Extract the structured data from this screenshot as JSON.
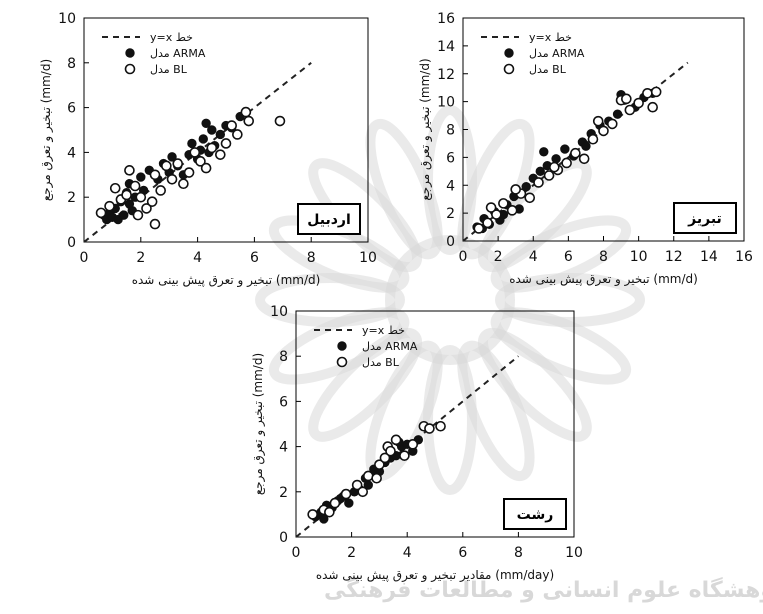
{
  "watermark": {
    "text": "پژوهشگاه علوم انسانی و مطالعات فرهنگی",
    "color": "#d8d8d8"
  },
  "legend_entries": {
    "line": "y=x خط",
    "arma": "مدل ARMA",
    "bl": "مدل BL"
  },
  "chart_data": [
    {
      "type": "scatter",
      "title": "اردبیل",
      "xlabel": "تبخیر و تعرق پیش بینی شده (mm/d)",
      "ylabel": "تبخیر و تعرق مرجع (mm/d)",
      "xlim": [
        0,
        10
      ],
      "ylim": [
        0,
        10
      ],
      "xticks": [
        0,
        2,
        4,
        6,
        8,
        10
      ],
      "yticks": [
        0,
        2,
        4,
        6,
        8,
        10
      ],
      "legend_position": "top-left",
      "series": [
        {
          "name": "مدل ARMA",
          "marker": "filled-circle",
          "x": [
            0.7,
            0.8,
            0.9,
            1.0,
            1.1,
            1.2,
            1.3,
            1.4,
            1.5,
            1.6,
            1.6,
            1.7,
            1.8,
            2.0,
            2.1,
            2.3,
            2.6,
            2.8,
            3.0,
            3.1,
            3.3,
            3.5,
            3.7,
            3.8,
            4.0,
            4.1,
            4.2,
            4.3,
            4.4,
            4.5,
            4.6,
            4.8,
            5.0,
            5.2,
            5.5
          ],
          "y": [
            1.2,
            1.0,
            1.3,
            1.1,
            1.5,
            1.0,
            1.8,
            1.2,
            2.2,
            1.7,
            2.6,
            1.4,
            2.0,
            2.9,
            2.3,
            3.2,
            2.8,
            3.5,
            3.1,
            3.8,
            3.4,
            3.0,
            3.9,
            4.4,
            3.7,
            4.1,
            4.6,
            5.3,
            4.0,
            5.0,
            4.3,
            4.8,
            5.2,
            5.1,
            5.6
          ]
        },
        {
          "name": "مدل BL",
          "marker": "open-circle",
          "x": [
            0.6,
            0.9,
            1.1,
            1.3,
            1.5,
            1.6,
            1.8,
            2.0,
            2.2,
            2.4,
            2.5,
            2.7,
            2.9,
            3.1,
            3.3,
            3.5,
            3.7,
            3.9,
            4.1,
            4.3,
            4.5,
            4.8,
            5.0,
            5.2,
            5.4,
            5.7,
            5.8,
            6.9,
            2.5,
            1.9
          ],
          "y": [
            1.3,
            1.6,
            2.4,
            1.9,
            2.1,
            3.2,
            2.5,
            2.0,
            1.5,
            1.8,
            3.0,
            2.3,
            3.4,
            2.8,
            3.5,
            2.6,
            3.1,
            4.0,
            3.6,
            3.3,
            4.2,
            3.9,
            4.4,
            5.2,
            4.8,
            5.8,
            5.4,
            5.4,
            0.8,
            1.2
          ]
        }
      ]
    },
    {
      "type": "scatter",
      "title": "تبریز",
      "xlabel": "تبخیر و تعرق پیش بینی شده (mm/d)",
      "ylabel": "تبخیر و تعرق مرجع (mm/d)",
      "xlim": [
        0,
        16
      ],
      "ylim": [
        0,
        16
      ],
      "xticks": [
        0,
        2,
        4,
        6,
        8,
        10,
        12,
        14,
        16
      ],
      "yticks": [
        0,
        2,
        4,
        6,
        8,
        10,
        12,
        14,
        16
      ],
      "legend_position": "top-left",
      "series": [
        {
          "name": "مدل ARMA",
          "marker": "filled-circle",
          "x": [
            0.8,
            1.2,
            1.5,
            1.8,
            2.1,
            2.5,
            2.9,
            3.2,
            3.6,
            4.0,
            4.4,
            4.8,
            5.3,
            5.8,
            6.3,
            6.8,
            7.3,
            7.8,
            8.3,
            8.8,
            9.2,
            9.8,
            10.3,
            10.8,
            1.1,
            2.3,
            4.6,
            7.0,
            9.0
          ],
          "y": [
            1.0,
            1.6,
            1.2,
            2.1,
            1.5,
            2.6,
            3.2,
            2.3,
            3.9,
            4.5,
            5.0,
            5.4,
            5.9,
            6.6,
            6.1,
            7.1,
            7.7,
            8.3,
            8.6,
            9.1,
            10.1,
            9.6,
            10.3,
            10.6,
            0.9,
            1.9,
            6.4,
            6.8,
            10.5
          ]
        },
        {
          "name": "مدل BL",
          "marker": "open-circle",
          "x": [
            0.9,
            1.4,
            1.9,
            2.3,
            2.8,
            3.3,
            3.8,
            4.3,
            4.9,
            5.4,
            5.9,
            6.4,
            6.9,
            7.4,
            8.0,
            8.5,
            9.0,
            9.5,
            10.0,
            10.5,
            11.0,
            1.6,
            3.0,
            5.2,
            7.7,
            9.3,
            10.8
          ],
          "y": [
            0.9,
            1.3,
            1.9,
            2.7,
            2.2,
            3.4,
            3.1,
            4.2,
            4.7,
            5.1,
            5.6,
            6.3,
            5.9,
            7.3,
            7.9,
            8.4,
            10.1,
            9.4,
            9.9,
            10.6,
            10.7,
            2.4,
            3.7,
            5.3,
            8.6,
            10.2,
            9.6
          ]
        }
      ]
    },
    {
      "type": "scatter",
      "title": "رشت",
      "xlabel": "مقادیر تبخیر و تعرق پیش بینی شده (mm/day)",
      "ylabel": "تبخیر و تعرق مرجع (mm/d)",
      "xlim": [
        0,
        10
      ],
      "ylim": [
        0,
        10
      ],
      "xticks": [
        0,
        2,
        4,
        6,
        8,
        10
      ],
      "yticks": [
        0,
        2,
        4,
        6,
        8,
        10
      ],
      "legend_position": "top-left",
      "series": [
        {
          "name": "مدل ARMA",
          "marker": "filled-circle",
          "x": [
            0.7,
            0.9,
            1.1,
            1.3,
            1.5,
            1.7,
            1.9,
            2.1,
            2.3,
            2.5,
            2.6,
            2.8,
            3.0,
            3.2,
            3.4,
            3.6,
            3.8,
            4.0,
            4.2,
            1.0,
            1.6,
            2.9,
            3.7,
            4.4
          ],
          "y": [
            0.9,
            1.1,
            1.4,
            1.3,
            1.6,
            1.8,
            1.5,
            2.0,
            2.1,
            2.6,
            2.3,
            3.0,
            2.9,
            3.3,
            3.5,
            3.6,
            4.0,
            4.1,
            3.8,
            0.8,
            1.7,
            2.7,
            4.2,
            4.3
          ]
        },
        {
          "name": "مدل BL",
          "marker": "open-circle",
          "x": [
            0.6,
            1.0,
            1.4,
            1.8,
            2.2,
            2.6,
            3.0,
            3.3,
            3.6,
            3.9,
            4.2,
            4.6,
            5.2,
            2.4,
            3.2,
            3.4,
            4.8,
            1.2,
            2.9
          ],
          "y": [
            1.0,
            1.2,
            1.5,
            1.9,
            2.3,
            2.7,
            3.2,
            4.0,
            4.3,
            3.6,
            4.1,
            4.9,
            4.9,
            2.0,
            3.5,
            3.8,
            4.8,
            1.1,
            2.6
          ]
        }
      ]
    }
  ]
}
